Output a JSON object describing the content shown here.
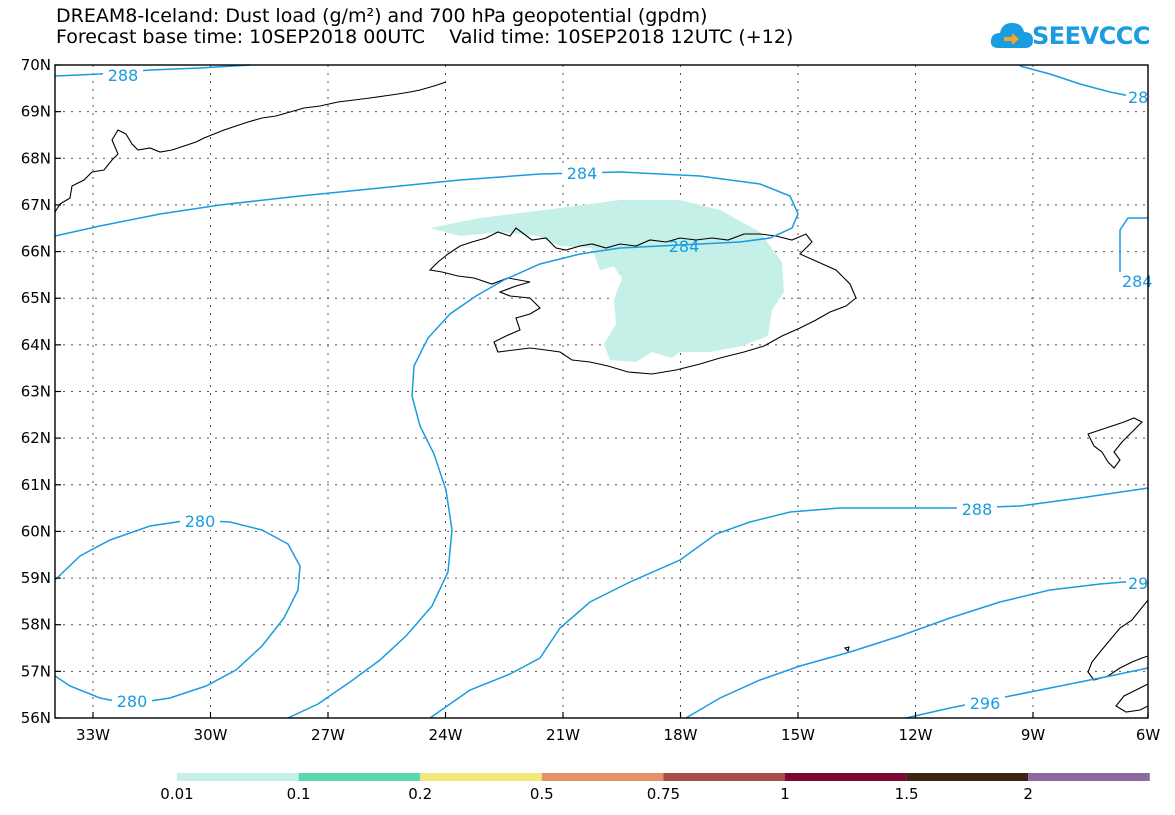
{
  "title_line1": "DREAM8-Iceland: Dust load (g/m²) and 700 hPa geopotential (gpdm)",
  "title_line2": "Forecast base time: 10SEP2018 00UTC    Valid time: 10SEP2018 12UTC (+12)",
  "logo_text": "SEEVCCC",
  "lat_labels": [
    "70N",
    "69N",
    "68N",
    "67N",
    "66N",
    "65N",
    "64N",
    "63N",
    "62N",
    "61N",
    "60N",
    "59N",
    "58N",
    "57N",
    "56N"
  ],
  "lon_labels": [
    "33W",
    "30W",
    "27W",
    "24W",
    "21W",
    "18W",
    "15W",
    "12W",
    "9W",
    "6W"
  ],
  "contour_labels": [
    "288",
    "284",
    "284",
    "280",
    "280",
    "288",
    "296",
    "28",
    "284",
    "29"
  ],
  "colorbar": {
    "tick_labels": [
      "0.01",
      "0.1",
      "0.2",
      "0.5",
      "0.75",
      "1",
      "1.5",
      "2"
    ],
    "colors": [
      "#c4f0e8",
      "#5ad9b0",
      "#f5e87a",
      "#e8906a",
      "#a84c48",
      "#7a0a34",
      "#3a2414",
      "#8c6ca0"
    ]
  },
  "colors": {
    "contour": "#1a9ce0",
    "dust_low": "#c4f0e8"
  }
}
